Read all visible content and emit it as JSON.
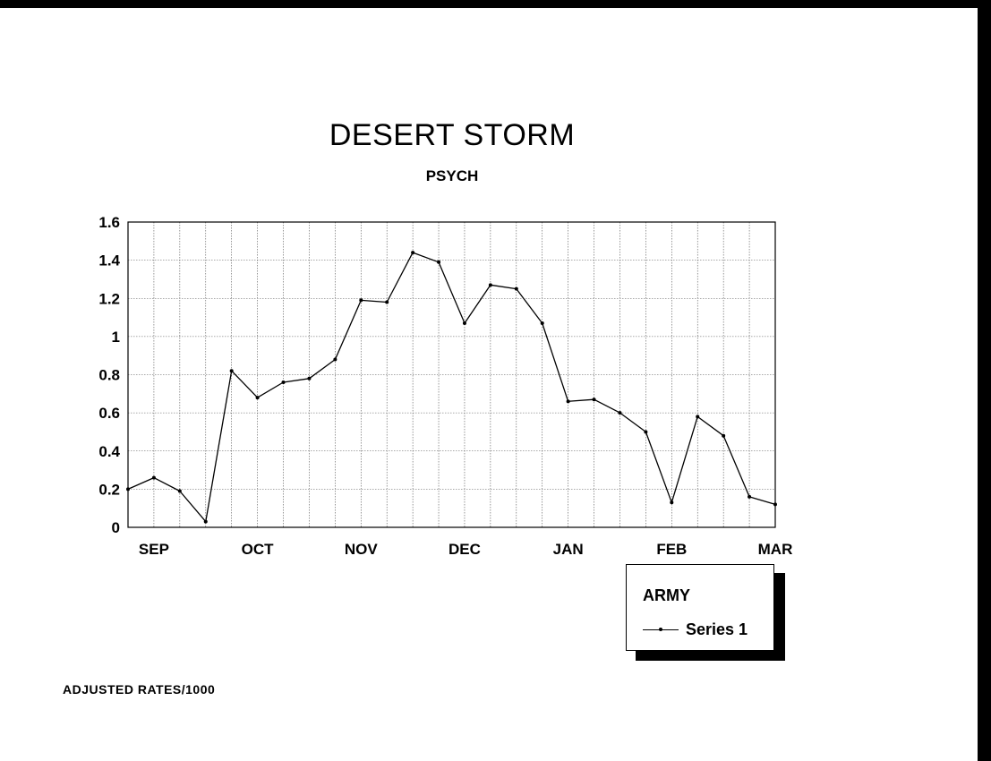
{
  "chart_data": {
    "type": "line",
    "title": "DESERT STORM",
    "subtitle": "PSYCH",
    "footnote": "ADJUSTED RATES/1000",
    "legend": {
      "title": "ARMY",
      "placement": "bottom-right"
    },
    "grid": true,
    "ylim": [
      0,
      1.6
    ],
    "yticks": [
      "0",
      "0.2",
      "0.4",
      "0.6",
      "0.8",
      "1",
      "1.2",
      "1.4",
      "1.6"
    ],
    "month_labels": [
      "SEP",
      "OCT",
      "NOV",
      "DEC",
      "JAN",
      "FEB",
      "MAR"
    ],
    "series": [
      {
        "name": "Series 1",
        "values": [
          0.2,
          0.26,
          0.19,
          0.03,
          0.82,
          0.68,
          0.76,
          0.78,
          0.88,
          1.19,
          1.18,
          1.44,
          1.39,
          1.07,
          1.27,
          1.25,
          1.07,
          0.66,
          0.67,
          0.6,
          0.5,
          0.13,
          0.58,
          0.48,
          0.16,
          0.12
        ]
      }
    ]
  }
}
